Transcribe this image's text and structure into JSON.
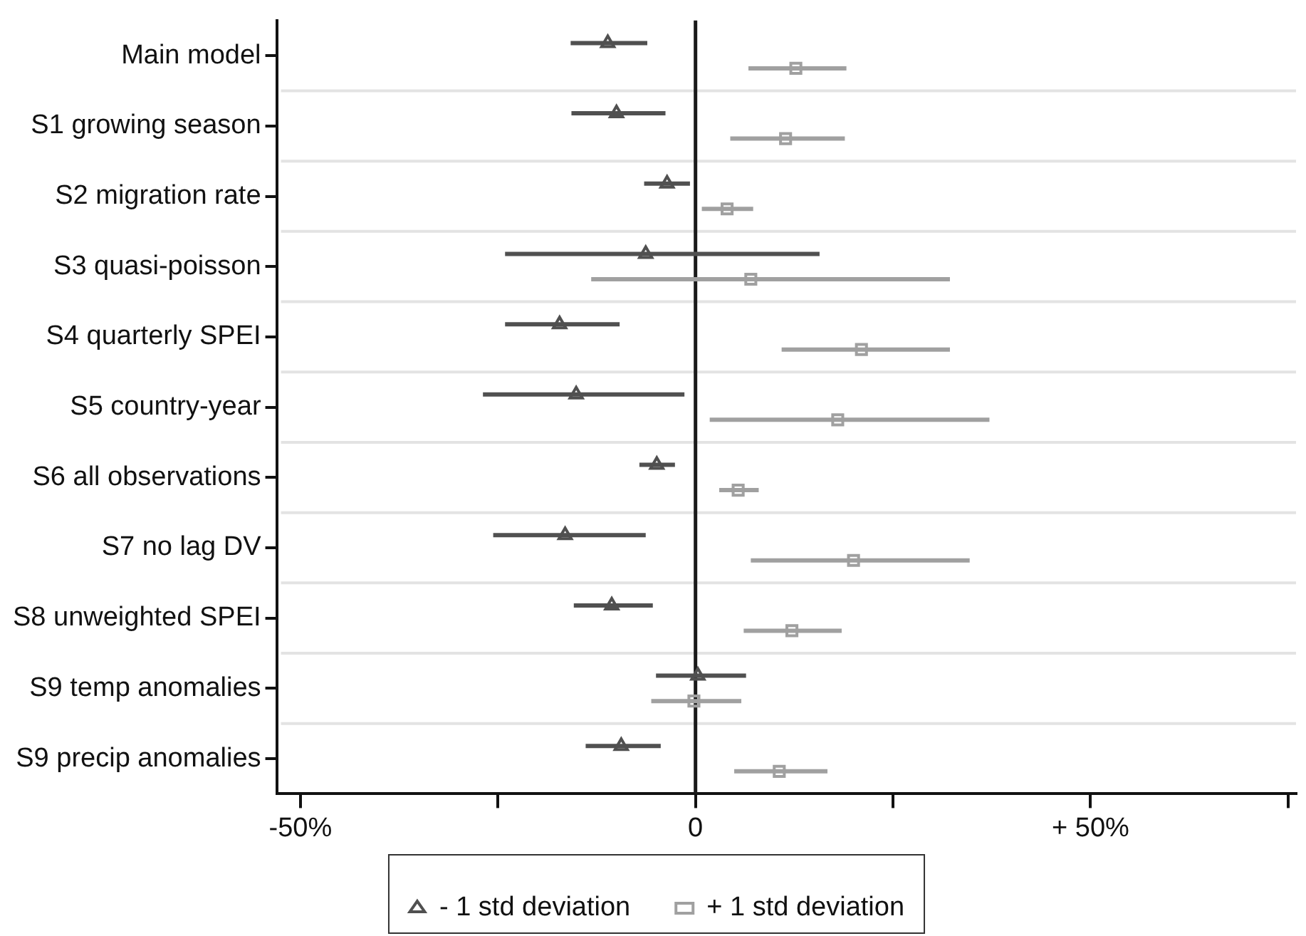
{
  "chart_data": {
    "type": "scatter",
    "orientation": "horizontal",
    "categories": [
      "Main model",
      "S1 growing season",
      "S2 migration rate",
      "S3 quasi-poisson",
      "S4 quarterly SPEI",
      "S5 country-year",
      "S6 all observations",
      "S7 no lag DV",
      "S8 unweighted SPEI",
      "S9 temp anomalies",
      "S9 precip anomalies"
    ],
    "series": [
      {
        "name": "- 1 std deviation",
        "color": "#505050",
        "marker": "triangle",
        "values": [
          -11.1,
          -10.0,
          -3.6,
          -6.3,
          -17.2,
          -15.1,
          -4.9,
          -16.5,
          -10.6,
          0.3,
          -9.4
        ],
        "errors": [
          [
            -15.8,
            -6.1
          ],
          [
            -15.7,
            -3.8
          ],
          [
            -6.5,
            -0.7
          ],
          [
            -24.1,
            15.7
          ],
          [
            -24.1,
            -9.6
          ],
          [
            -26.9,
            -1.4
          ],
          [
            -7.1,
            -2.6
          ],
          [
            -25.6,
            -6.3
          ],
          [
            -15.4,
            -5.4
          ],
          [
            -5.0,
            6.4
          ],
          [
            -13.9,
            -4.4
          ]
        ]
      },
      {
        "name": "+ 1 std deviation",
        "color": "#a0a0a0",
        "marker": "square",
        "values": [
          12.7,
          11.4,
          4.0,
          7.0,
          21.0,
          18.0,
          5.4,
          20.0,
          12.2,
          -0.2,
          10.6
        ],
        "errors": [
          [
            6.7,
            19.1
          ],
          [
            4.4,
            18.9
          ],
          [
            0.8,
            7.3
          ],
          [
            -13.2,
            32.2
          ],
          [
            10.9,
            32.2
          ],
          [
            1.8,
            37.2
          ],
          [
            3.0,
            8.0
          ],
          [
            7.0,
            34.7
          ],
          [
            6.1,
            18.5
          ],
          [
            -5.6,
            5.8
          ],
          [
            4.9,
            16.7
          ]
        ]
      }
    ],
    "xlim": [
      -53,
      76
    ],
    "xticks": [
      {
        "value": -50,
        "label": "-50%"
      },
      {
        "value": -25,
        "label": null
      },
      0,
      {
        "value": 25,
        "label": null
      },
      {
        "value": 50,
        "label": "+ 50%"
      },
      {
        "value": 75,
        "label": null
      }
    ],
    "ref_lines": [
      {
        "axis": "x",
        "value": 0,
        "color": "#1a1a1a"
      }
    ],
    "grid": "y",
    "legend": "bottom"
  }
}
